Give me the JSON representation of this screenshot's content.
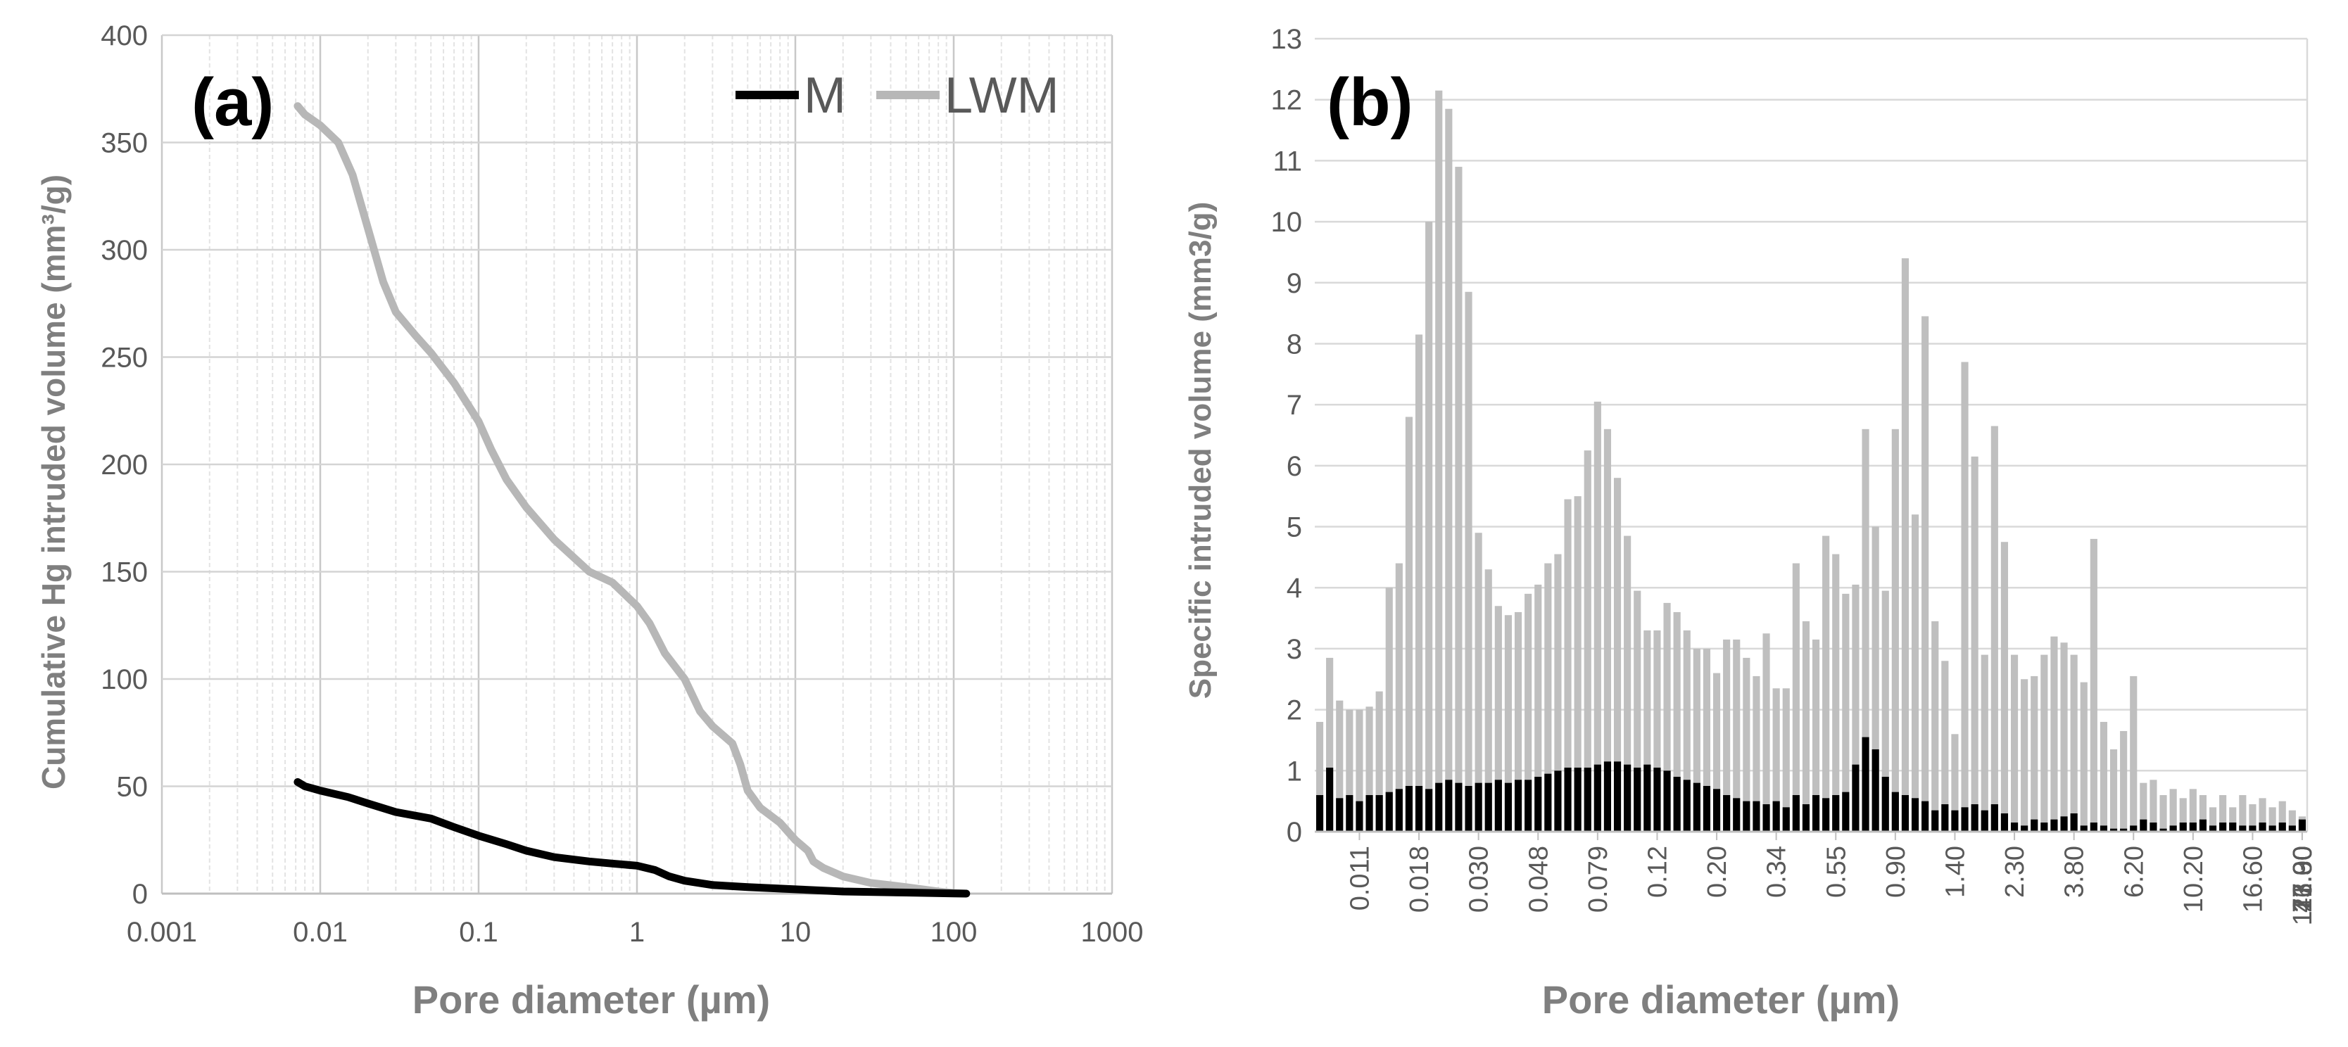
{
  "chart_data": [
    {
      "panel": "(a)",
      "type": "line",
      "title": "",
      "xlabel": "Pore diameter (µm)",
      "ylabel": "Cumulative Hg intruded volume (mm³/g)",
      "xscale": "log",
      "xlim": [
        0.001,
        1000
      ],
      "ylim": [
        0,
        400
      ],
      "xticks": [
        0.001,
        0.01,
        0.1,
        1,
        10,
        100,
        1000
      ],
      "xtick_labels": [
        "0.001",
        "0.01",
        "0.1",
        "1",
        "10",
        "100",
        "1000"
      ],
      "yticks": [
        0,
        50,
        100,
        150,
        200,
        250,
        300,
        350,
        400
      ],
      "ytick_labels": [
        "0",
        "50",
        "100",
        "150",
        "200",
        "250",
        "300",
        "350",
        "400"
      ],
      "grid": true,
      "legend": [
        "M",
        "LWM"
      ],
      "legend_position": "top-right",
      "series": [
        {
          "name": "M",
          "color": "#000000",
          "x": [
            0.0072,
            0.008,
            0.01,
            0.015,
            0.02,
            0.03,
            0.05,
            0.07,
            0.1,
            0.15,
            0.2,
            0.3,
            0.5,
            0.7,
            1.0,
            1.3,
            1.6,
            2,
            3,
            5,
            10,
            20,
            50,
            100,
            120
          ],
          "y": [
            52,
            50,
            48,
            45,
            42,
            38,
            35,
            31,
            27,
            23,
            20,
            17,
            15,
            14,
            13,
            11,
            8,
            6,
            4,
            3,
            2,
            1,
            0.5,
            0.1,
            0
          ]
        },
        {
          "name": "LWM",
          "color": "#b7b7b7",
          "x": [
            0.0072,
            0.008,
            0.01,
            0.013,
            0.016,
            0.02,
            0.025,
            0.03,
            0.04,
            0.05,
            0.07,
            0.1,
            0.12,
            0.15,
            0.2,
            0.3,
            0.5,
            0.7,
            1.0,
            1.2,
            1.5,
            2.0,
            2.5,
            3.0,
            4.0,
            4.5,
            5.0,
            6.0,
            8.0,
            10,
            12,
            13,
            15,
            20,
            30,
            50,
            80,
            100,
            120
          ],
          "y": [
            367,
            363,
            358,
            350,
            335,
            310,
            285,
            271,
            260,
            252,
            238,
            220,
            207,
            193,
            180,
            165,
            150,
            145,
            134,
            126,
            112,
            100,
            85,
            78,
            70,
            60,
            48,
            40,
            33,
            25,
            20,
            15,
            12,
            8,
            5,
            3,
            1,
            0.3,
            0
          ]
        }
      ]
    },
    {
      "panel": "(b)",
      "type": "bar",
      "title": "",
      "xlabel": "Pore diameter (µm)",
      "ylabel": "Specific intruded volume (mm3/g)",
      "ylim": [
        0,
        13
      ],
      "yticks": [
        0,
        1,
        2,
        3,
        4,
        5,
        6,
        7,
        8,
        9,
        10,
        11,
        12,
        13
      ],
      "ytick_labels": [
        "0",
        "1",
        "2",
        "3",
        "4",
        "5",
        "6",
        "7",
        "8",
        "9",
        "10",
        "11",
        "12",
        "13"
      ],
      "xtick_labels": [
        "0.011",
        "0.018",
        "0.030",
        "0.048",
        "0.079",
        "0.12",
        "0.20",
        "0.34",
        "0.55",
        "0.90",
        "1.40",
        "2.30",
        "3.80",
        "6.20",
        "10.20",
        "16.60",
        "27.00",
        "43.90",
        "71.30",
        "116.00"
      ],
      "grid": true,
      "bars_per_tick": 6,
      "series": [
        {
          "name": "LWM",
          "color": "#bfbfbf",
          "values": [
            1.8,
            2.85,
            2.15,
            2.0,
            2.0,
            2.05,
            2.3,
            4.0,
            4.4,
            6.8,
            8.15,
            10.0,
            12.15,
            11.85,
            10.9,
            8.85,
            4.9,
            4.3,
            3.7,
            3.55,
            3.6,
            3.9,
            4.05,
            4.4,
            4.55,
            5.45,
            5.5,
            6.25,
            7.05,
            6.6,
            5.8,
            4.85,
            3.95,
            3.3,
            3.3,
            3.75,
            3.6,
            3.3,
            3.0,
            3.0,
            2.6,
            3.15,
            3.15,
            2.85,
            2.55,
            3.25,
            2.35,
            2.35,
            4.4,
            3.45,
            3.15,
            4.85,
            4.55,
            3.9,
            4.05,
            6.6,
            5.0,
            3.95,
            6.6,
            9.4,
            5.2,
            8.45,
            3.45,
            2.8,
            1.6,
            7.7,
            6.15,
            2.9,
            6.65,
            4.75,
            2.9,
            2.5,
            2.55,
            2.9,
            3.2,
            3.1,
            2.9,
            2.45,
            4.8,
            1.8,
            1.35,
            1.65,
            2.55,
            0.8,
            0.85,
            0.6,
            0.7,
            0.55,
            0.7,
            0.6,
            0.4,
            0.6,
            0.4,
            0.6,
            0.45,
            0.55,
            0.4,
            0.5,
            0.35,
            0.25
          ],
          "scale": "visual estimate"
        },
        {
          "name": "M",
          "color": "#000000",
          "values": [
            0.6,
            1.05,
            0.55,
            0.6,
            0.5,
            0.6,
            0.6,
            0.65,
            0.7,
            0.75,
            0.75,
            0.7,
            0.8,
            0.85,
            0.8,
            0.75,
            0.8,
            0.8,
            0.85,
            0.8,
            0.85,
            0.85,
            0.9,
            0.95,
            1.0,
            1.05,
            1.05,
            1.05,
            1.1,
            1.15,
            1.15,
            1.1,
            1.05,
            1.1,
            1.05,
            1.0,
            0.9,
            0.85,
            0.8,
            0.75,
            0.7,
            0.6,
            0.55,
            0.5,
            0.5,
            0.45,
            0.5,
            0.4,
            0.6,
            0.45,
            0.6,
            0.55,
            0.6,
            0.65,
            1.1,
            1.55,
            1.35,
            0.9,
            0.65,
            0.6,
            0.55,
            0.5,
            0.35,
            0.45,
            0.35,
            0.4,
            0.45,
            0.35,
            0.45,
            0.3,
            0.15,
            0.1,
            0.2,
            0.15,
            0.2,
            0.25,
            0.3,
            0.1,
            0.15,
            0.1,
            0.05,
            0.05,
            0.1,
            0.2,
            0.15,
            0.05,
            0.1,
            0.15,
            0.15,
            0.2,
            0.1,
            0.15,
            0.15,
            0.1,
            0.1,
            0.15,
            0.1,
            0.15,
            0.1,
            0.2
          ]
        }
      ]
    }
  ]
}
